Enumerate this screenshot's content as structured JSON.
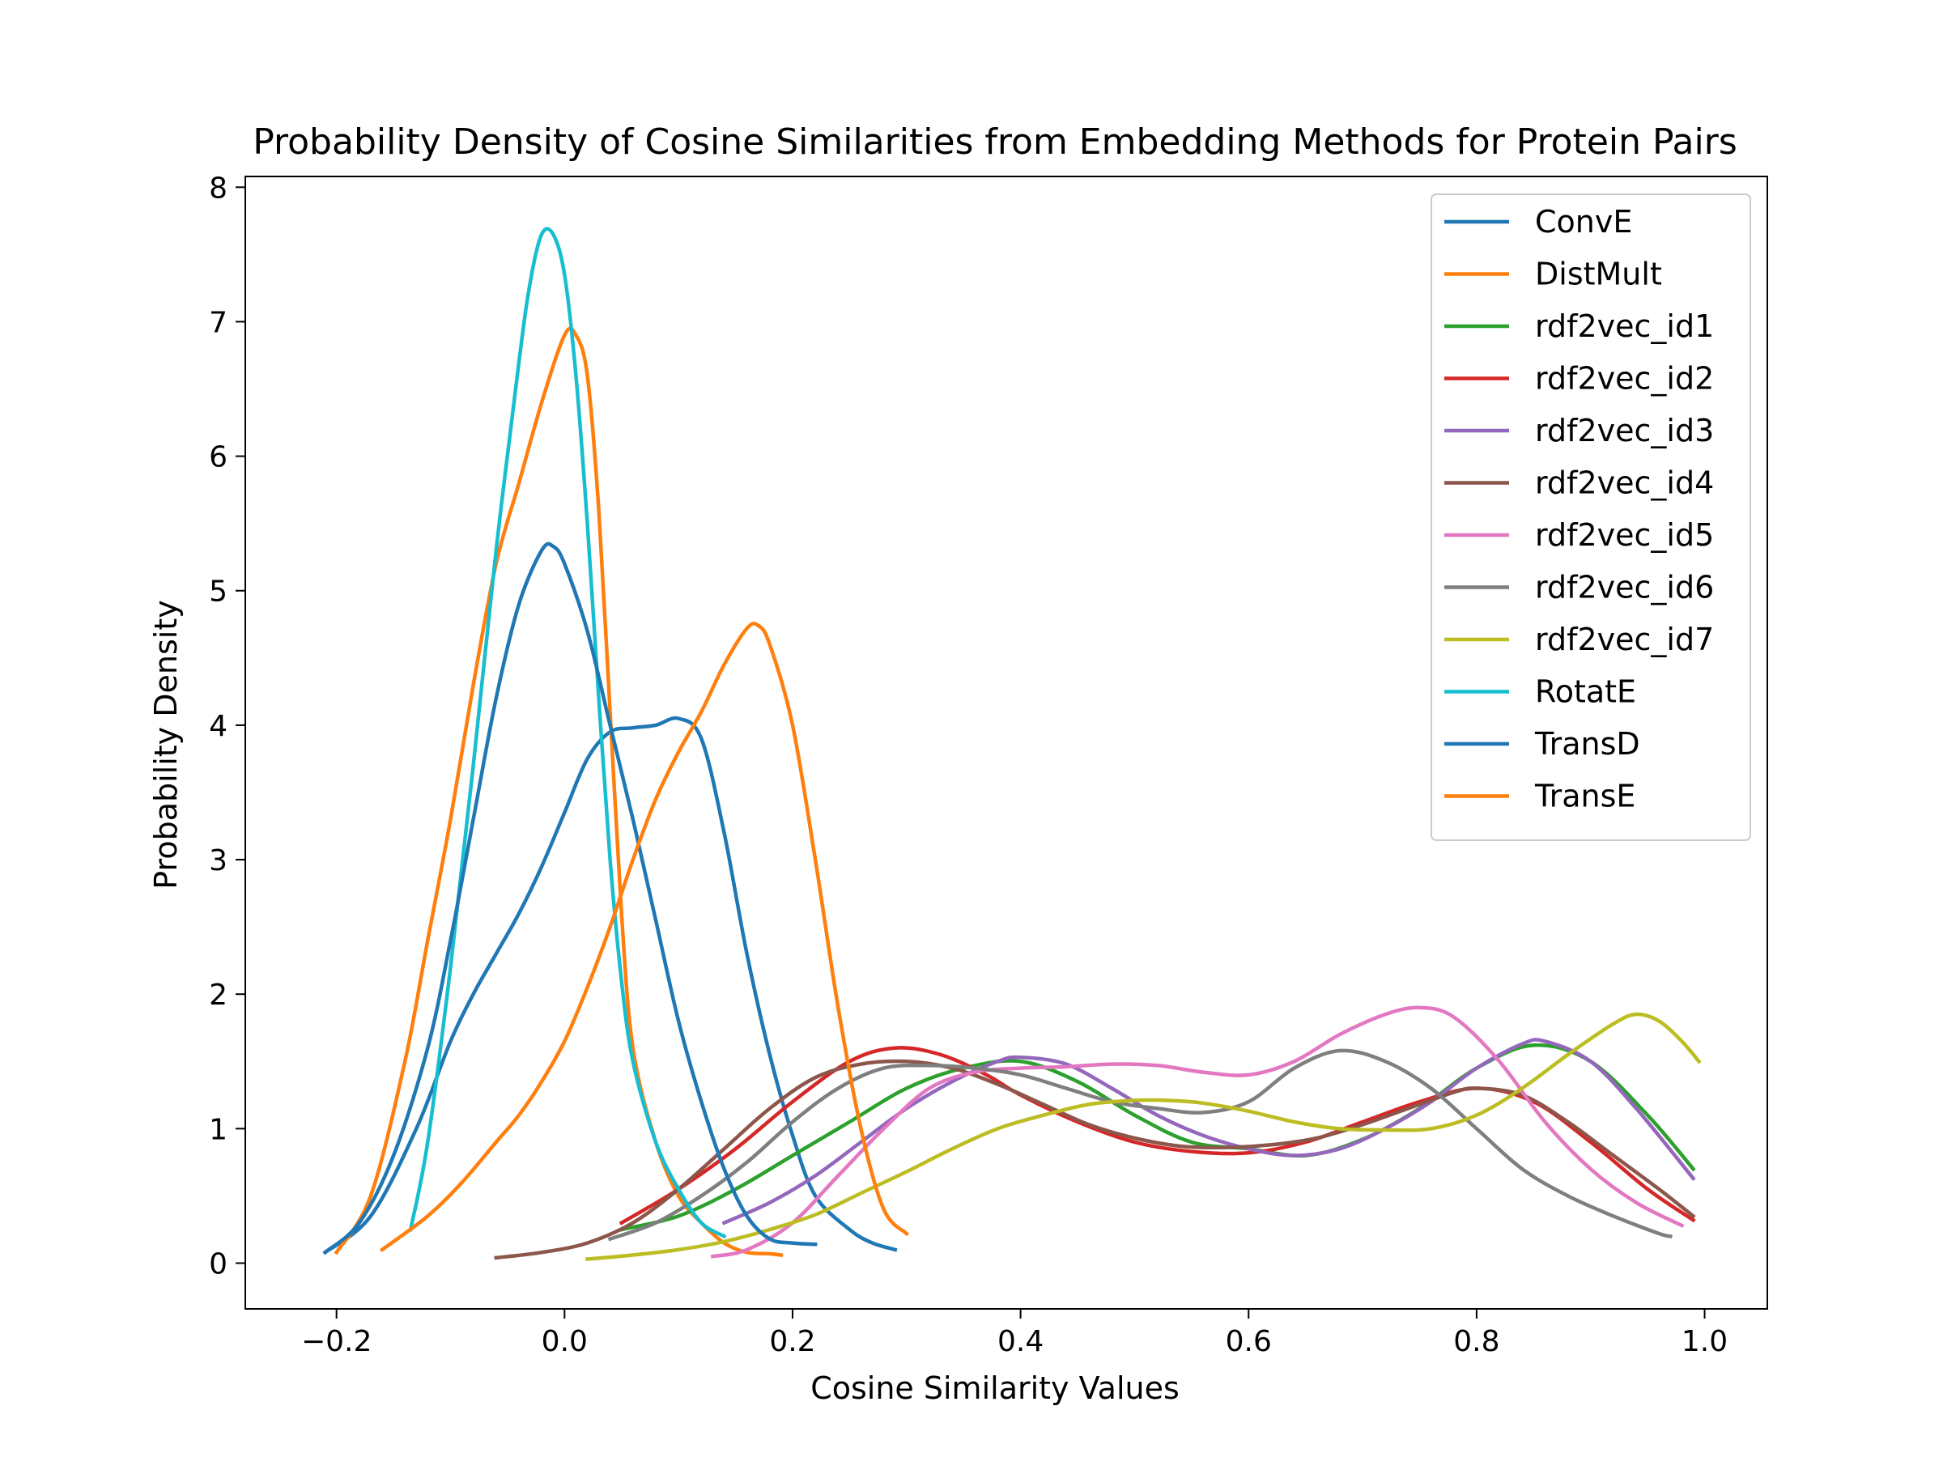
{
  "chart_data": {
    "type": "line",
    "title": "Probability Density of Cosine Similarities from Embedding Methods for Protein Pairs",
    "xlabel": "Cosine Similarity Values",
    "ylabel": "Probability Density",
    "xlim": [
      -0.28,
      1.055
    ],
    "ylim": [
      -0.34,
      8.08
    ],
    "xticks": [
      -0.2,
      0.0,
      0.2,
      0.4,
      0.6,
      0.8,
      1.0
    ],
    "xtick_labels": [
      "−0.2",
      "0.0",
      "0.2",
      "0.4",
      "0.6",
      "0.8",
      "1.0"
    ],
    "yticks": [
      0,
      1,
      2,
      3,
      4,
      5,
      6,
      7,
      8
    ],
    "ytick_labels": [
      "0",
      "1",
      "2",
      "3",
      "4",
      "5",
      "6",
      "7",
      "8"
    ],
    "grid": false,
    "legend_position": "top-right",
    "series": [
      {
        "name": "ConvE",
        "color": "#1f77b4",
        "x": [
          -0.21,
          -0.17,
          -0.13,
          -0.1,
          -0.08,
          -0.06,
          -0.04,
          -0.02,
          0.0,
          0.02,
          0.04,
          0.06,
          0.08,
          0.1,
          0.12,
          0.14,
          0.16,
          0.18,
          0.2,
          0.22,
          0.25,
          0.27,
          0.29
        ],
        "y": [
          0.08,
          0.35,
          1.0,
          1.65,
          2.0,
          2.3,
          2.6,
          2.95,
          3.35,
          3.75,
          3.95,
          3.98,
          4.0,
          4.05,
          3.9,
          3.2,
          2.3,
          1.55,
          0.95,
          0.5,
          0.25,
          0.15,
          0.1
        ]
      },
      {
        "name": "DistMult",
        "color": "#ff7f0e",
        "x": [
          -0.2,
          -0.17,
          -0.14,
          -0.12,
          -0.1,
          -0.08,
          -0.06,
          -0.04,
          -0.02,
          0.0,
          0.01,
          0.02,
          0.03,
          0.04,
          0.05,
          0.06,
          0.08,
          0.1,
          0.12,
          0.14,
          0.16,
          0.18,
          0.19
        ],
        "y": [
          0.08,
          0.5,
          1.5,
          2.4,
          3.3,
          4.3,
          5.2,
          5.8,
          6.4,
          6.9,
          6.9,
          6.6,
          5.6,
          4.1,
          2.6,
          1.6,
          0.9,
          0.5,
          0.3,
          0.15,
          0.08,
          0.07,
          0.06
        ]
      },
      {
        "name": "rdf2vec_id1",
        "color": "#2ca02c",
        "x": [
          0.05,
          0.1,
          0.15,
          0.2,
          0.25,
          0.3,
          0.35,
          0.4,
          0.45,
          0.5,
          0.55,
          0.6,
          0.65,
          0.7,
          0.75,
          0.8,
          0.85,
          0.9,
          0.95,
          0.99
        ],
        "y": [
          0.25,
          0.35,
          0.55,
          0.8,
          1.05,
          1.3,
          1.45,
          1.5,
          1.35,
          1.1,
          0.9,
          0.85,
          0.8,
          0.92,
          1.15,
          1.45,
          1.62,
          1.5,
          1.1,
          0.7
        ]
      },
      {
        "name": "rdf2vec_id2",
        "color": "#d62728",
        "x": [
          0.05,
          0.1,
          0.15,
          0.2,
          0.25,
          0.29,
          0.33,
          0.37,
          0.4,
          0.45,
          0.5,
          0.55,
          0.6,
          0.65,
          0.7,
          0.75,
          0.8,
          0.85,
          0.9,
          0.95,
          0.99
        ],
        "y": [
          0.3,
          0.55,
          0.85,
          1.2,
          1.5,
          1.6,
          1.55,
          1.4,
          1.25,
          1.05,
          0.9,
          0.83,
          0.82,
          0.9,
          1.05,
          1.2,
          1.3,
          1.2,
          0.9,
          0.55,
          0.32
        ]
      },
      {
        "name": "rdf2vec_id3",
        "color": "#9467bd",
        "x": [
          0.14,
          0.18,
          0.22,
          0.26,
          0.3,
          0.34,
          0.38,
          0.4,
          0.44,
          0.48,
          0.52,
          0.56,
          0.6,
          0.64,
          0.68,
          0.72,
          0.76,
          0.8,
          0.84,
          0.86,
          0.9,
          0.94,
          0.99
        ],
        "y": [
          0.3,
          0.45,
          0.65,
          0.9,
          1.15,
          1.35,
          1.5,
          1.53,
          1.48,
          1.3,
          1.1,
          0.95,
          0.85,
          0.8,
          0.85,
          1.0,
          1.2,
          1.45,
          1.63,
          1.65,
          1.5,
          1.15,
          0.63
        ]
      },
      {
        "name": "rdf2vec_id4",
        "color": "#8c564b",
        "x": [
          -0.06,
          -0.02,
          0.02,
          0.06,
          0.1,
          0.14,
          0.18,
          0.22,
          0.26,
          0.3,
          0.34,
          0.38,
          0.42,
          0.46,
          0.5,
          0.54,
          0.58,
          0.62,
          0.66,
          0.7,
          0.74,
          0.78,
          0.8,
          0.84,
          0.88,
          0.92,
          0.96,
          0.99
        ],
        "y": [
          0.04,
          0.08,
          0.15,
          0.3,
          0.55,
          0.85,
          1.15,
          1.38,
          1.48,
          1.5,
          1.45,
          1.33,
          1.18,
          1.03,
          0.93,
          0.87,
          0.86,
          0.88,
          0.93,
          1.03,
          1.15,
          1.27,
          1.3,
          1.25,
          1.05,
          0.8,
          0.55,
          0.35
        ]
      },
      {
        "name": "rdf2vec_id5",
        "color": "#e377c2",
        "x": [
          0.13,
          0.16,
          0.2,
          0.24,
          0.28,
          0.32,
          0.36,
          0.4,
          0.44,
          0.48,
          0.52,
          0.56,
          0.6,
          0.64,
          0.68,
          0.72,
          0.75,
          0.78,
          0.82,
          0.86,
          0.9,
          0.94,
          0.98
        ],
        "y": [
          0.05,
          0.1,
          0.3,
          0.65,
          1.0,
          1.3,
          1.42,
          1.45,
          1.46,
          1.48,
          1.47,
          1.42,
          1.4,
          1.5,
          1.7,
          1.85,
          1.9,
          1.83,
          1.5,
          1.05,
          0.7,
          0.45,
          0.28
        ]
      },
      {
        "name": "rdf2vec_id6",
        "color": "#7f7f7f",
        "x": [
          0.04,
          0.08,
          0.12,
          0.16,
          0.2,
          0.24,
          0.28,
          0.32,
          0.36,
          0.4,
          0.44,
          0.48,
          0.52,
          0.56,
          0.6,
          0.64,
          0.68,
          0.72,
          0.76,
          0.8,
          0.84,
          0.88,
          0.92,
          0.96,
          0.97
        ],
        "y": [
          0.18,
          0.3,
          0.5,
          0.75,
          1.05,
          1.3,
          1.45,
          1.47,
          1.45,
          1.4,
          1.3,
          1.2,
          1.15,
          1.12,
          1.2,
          1.45,
          1.58,
          1.5,
          1.3,
          1.0,
          0.7,
          0.5,
          0.35,
          0.22,
          0.2
        ]
      },
      {
        "name": "rdf2vec_id7",
        "color": "#bcbd22",
        "x": [
          0.02,
          0.06,
          0.1,
          0.14,
          0.18,
          0.22,
          0.26,
          0.3,
          0.34,
          0.38,
          0.42,
          0.46,
          0.5,
          0.53,
          0.56,
          0.6,
          0.64,
          0.68,
          0.72,
          0.76,
          0.8,
          0.84,
          0.88,
          0.92,
          0.94,
          0.96,
          0.98,
          0.995
        ],
        "y": [
          0.03,
          0.06,
          0.1,
          0.16,
          0.25,
          0.36,
          0.52,
          0.68,
          0.85,
          1.0,
          1.1,
          1.18,
          1.21,
          1.21,
          1.19,
          1.13,
          1.05,
          1.0,
          0.99,
          1.0,
          1.1,
          1.3,
          1.55,
          1.78,
          1.85,
          1.8,
          1.65,
          1.5
        ]
      },
      {
        "name": "RotatE",
        "color": "#17becf",
        "x": [
          -0.135,
          -0.12,
          -0.1,
          -0.08,
          -0.06,
          -0.04,
          -0.03,
          -0.02,
          -0.01,
          0.0,
          0.01,
          0.02,
          0.03,
          0.04,
          0.05,
          0.06,
          0.08,
          0.1,
          0.12,
          0.14
        ],
        "y": [
          0.25,
          0.9,
          2.2,
          3.7,
          5.3,
          6.7,
          7.3,
          7.65,
          7.65,
          7.35,
          6.6,
          5.5,
          4.2,
          3.0,
          2.1,
          1.5,
          0.9,
          0.55,
          0.3,
          0.2
        ]
      },
      {
        "name": "TransD",
        "color": "#1f77b4",
        "x": [
          -0.21,
          -0.18,
          -0.15,
          -0.12,
          -0.1,
          -0.08,
          -0.06,
          -0.04,
          -0.02,
          -0.01,
          0.0,
          0.02,
          0.04,
          0.06,
          0.08,
          0.1,
          0.12,
          0.14,
          0.16,
          0.18,
          0.2,
          0.22
        ],
        "y": [
          0.08,
          0.3,
          0.8,
          1.6,
          2.4,
          3.3,
          4.2,
          4.9,
          5.3,
          5.33,
          5.2,
          4.7,
          4.0,
          3.3,
          2.55,
          1.8,
          1.2,
          0.7,
          0.35,
          0.18,
          0.15,
          0.14
        ]
      },
      {
        "name": "TransE",
        "color": "#ff7f0e",
        "x": [
          -0.16,
          -0.12,
          -0.09,
          -0.06,
          -0.04,
          -0.02,
          0.0,
          0.02,
          0.04,
          0.06,
          0.08,
          0.1,
          0.12,
          0.14,
          0.16,
          0.17,
          0.18,
          0.2,
          0.22,
          0.24,
          0.26,
          0.28,
          0.3
        ],
        "y": [
          0.1,
          0.35,
          0.6,
          0.9,
          1.1,
          1.35,
          1.65,
          2.05,
          2.5,
          3.0,
          3.45,
          3.8,
          4.1,
          4.45,
          4.72,
          4.74,
          4.6,
          4.0,
          3.0,
          1.9,
          1.0,
          0.4,
          0.22
        ]
      }
    ]
  }
}
